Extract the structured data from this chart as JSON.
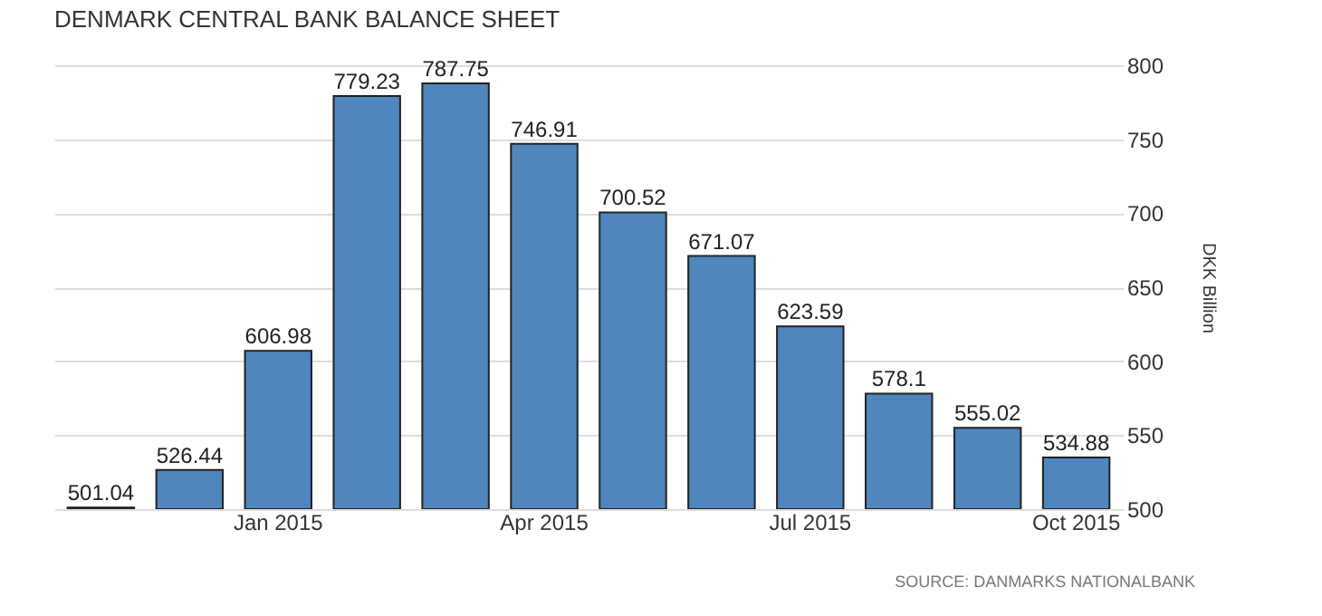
{
  "chart_data": {
    "type": "bar",
    "title": "DENMARK CENTRAL BANK BALANCE SHEET",
    "categories": [
      null,
      null,
      "Jan 2015",
      null,
      null,
      "Apr 2015",
      null,
      null,
      "Jul 2015",
      null,
      null,
      "Oct 2015"
    ],
    "values": [
      501.04,
      526.44,
      606.98,
      779.23,
      787.75,
      746.91,
      700.52,
      671.07,
      623.59,
      578.1,
      555.02,
      534.88
    ],
    "color": "#4f86bd",
    "ylabel": "DKK Billion",
    "ylim": [
      500,
      800
    ],
    "yticks": [
      500,
      550,
      600,
      650,
      700,
      750,
      800
    ],
    "grid": "y",
    "data_labels": true,
    "annotations": [
      "SOURCE: DANMARKS NATIONALBANK"
    ]
  }
}
